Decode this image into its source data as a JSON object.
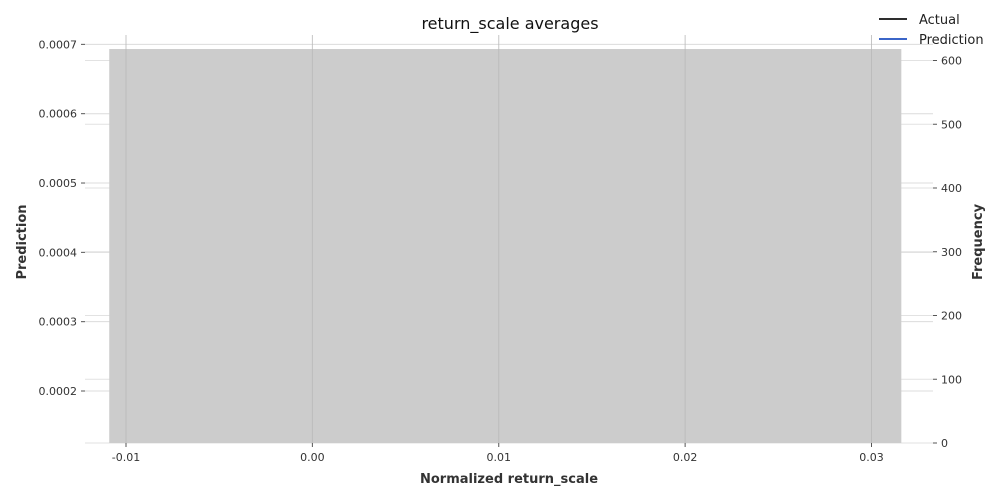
{
  "chart_data": {
    "type": "bar",
    "title": "return_scale averages",
    "xlabel": "Normalized return_scale",
    "ylabel_left": "Prediction",
    "ylabel_right": "Frequency",
    "x_ticks": [
      "-0.01",
      "0.00",
      "0.01",
      "0.02",
      "0.03"
    ],
    "x_tick_values": [
      -0.01,
      0.0,
      0.01,
      0.02,
      0.03
    ],
    "xlim": [
      -0.0122,
      0.0333
    ],
    "left_y_ticks": [
      "0.0002",
      "0.0003",
      "0.0004",
      "0.0005",
      "0.0006",
      "0.0007"
    ],
    "left_y_tick_values": [
      0.0002,
      0.0003,
      0.0004,
      0.0005,
      0.0006,
      0.0007
    ],
    "left_ylim": [
      0.000125,
      0.0007135
    ],
    "right_y_ticks": [
      "0",
      "100",
      "200",
      "300",
      "400",
      "500",
      "600"
    ],
    "right_y_tick_values": [
      0,
      100,
      200,
      300,
      400,
      500,
      600
    ],
    "right_ylim": [
      0,
      640
    ],
    "histogram": {
      "x_start": -0.0109,
      "x_end": 0.0316,
      "frequency": 618,
      "color": "#cccccc"
    },
    "series": [
      {
        "name": "Actual",
        "color": "#111111",
        "values": []
      },
      {
        "name": "Prediction",
        "color": "#1f4fc1",
        "values": []
      }
    ],
    "legend": "top-right",
    "grid": true
  }
}
